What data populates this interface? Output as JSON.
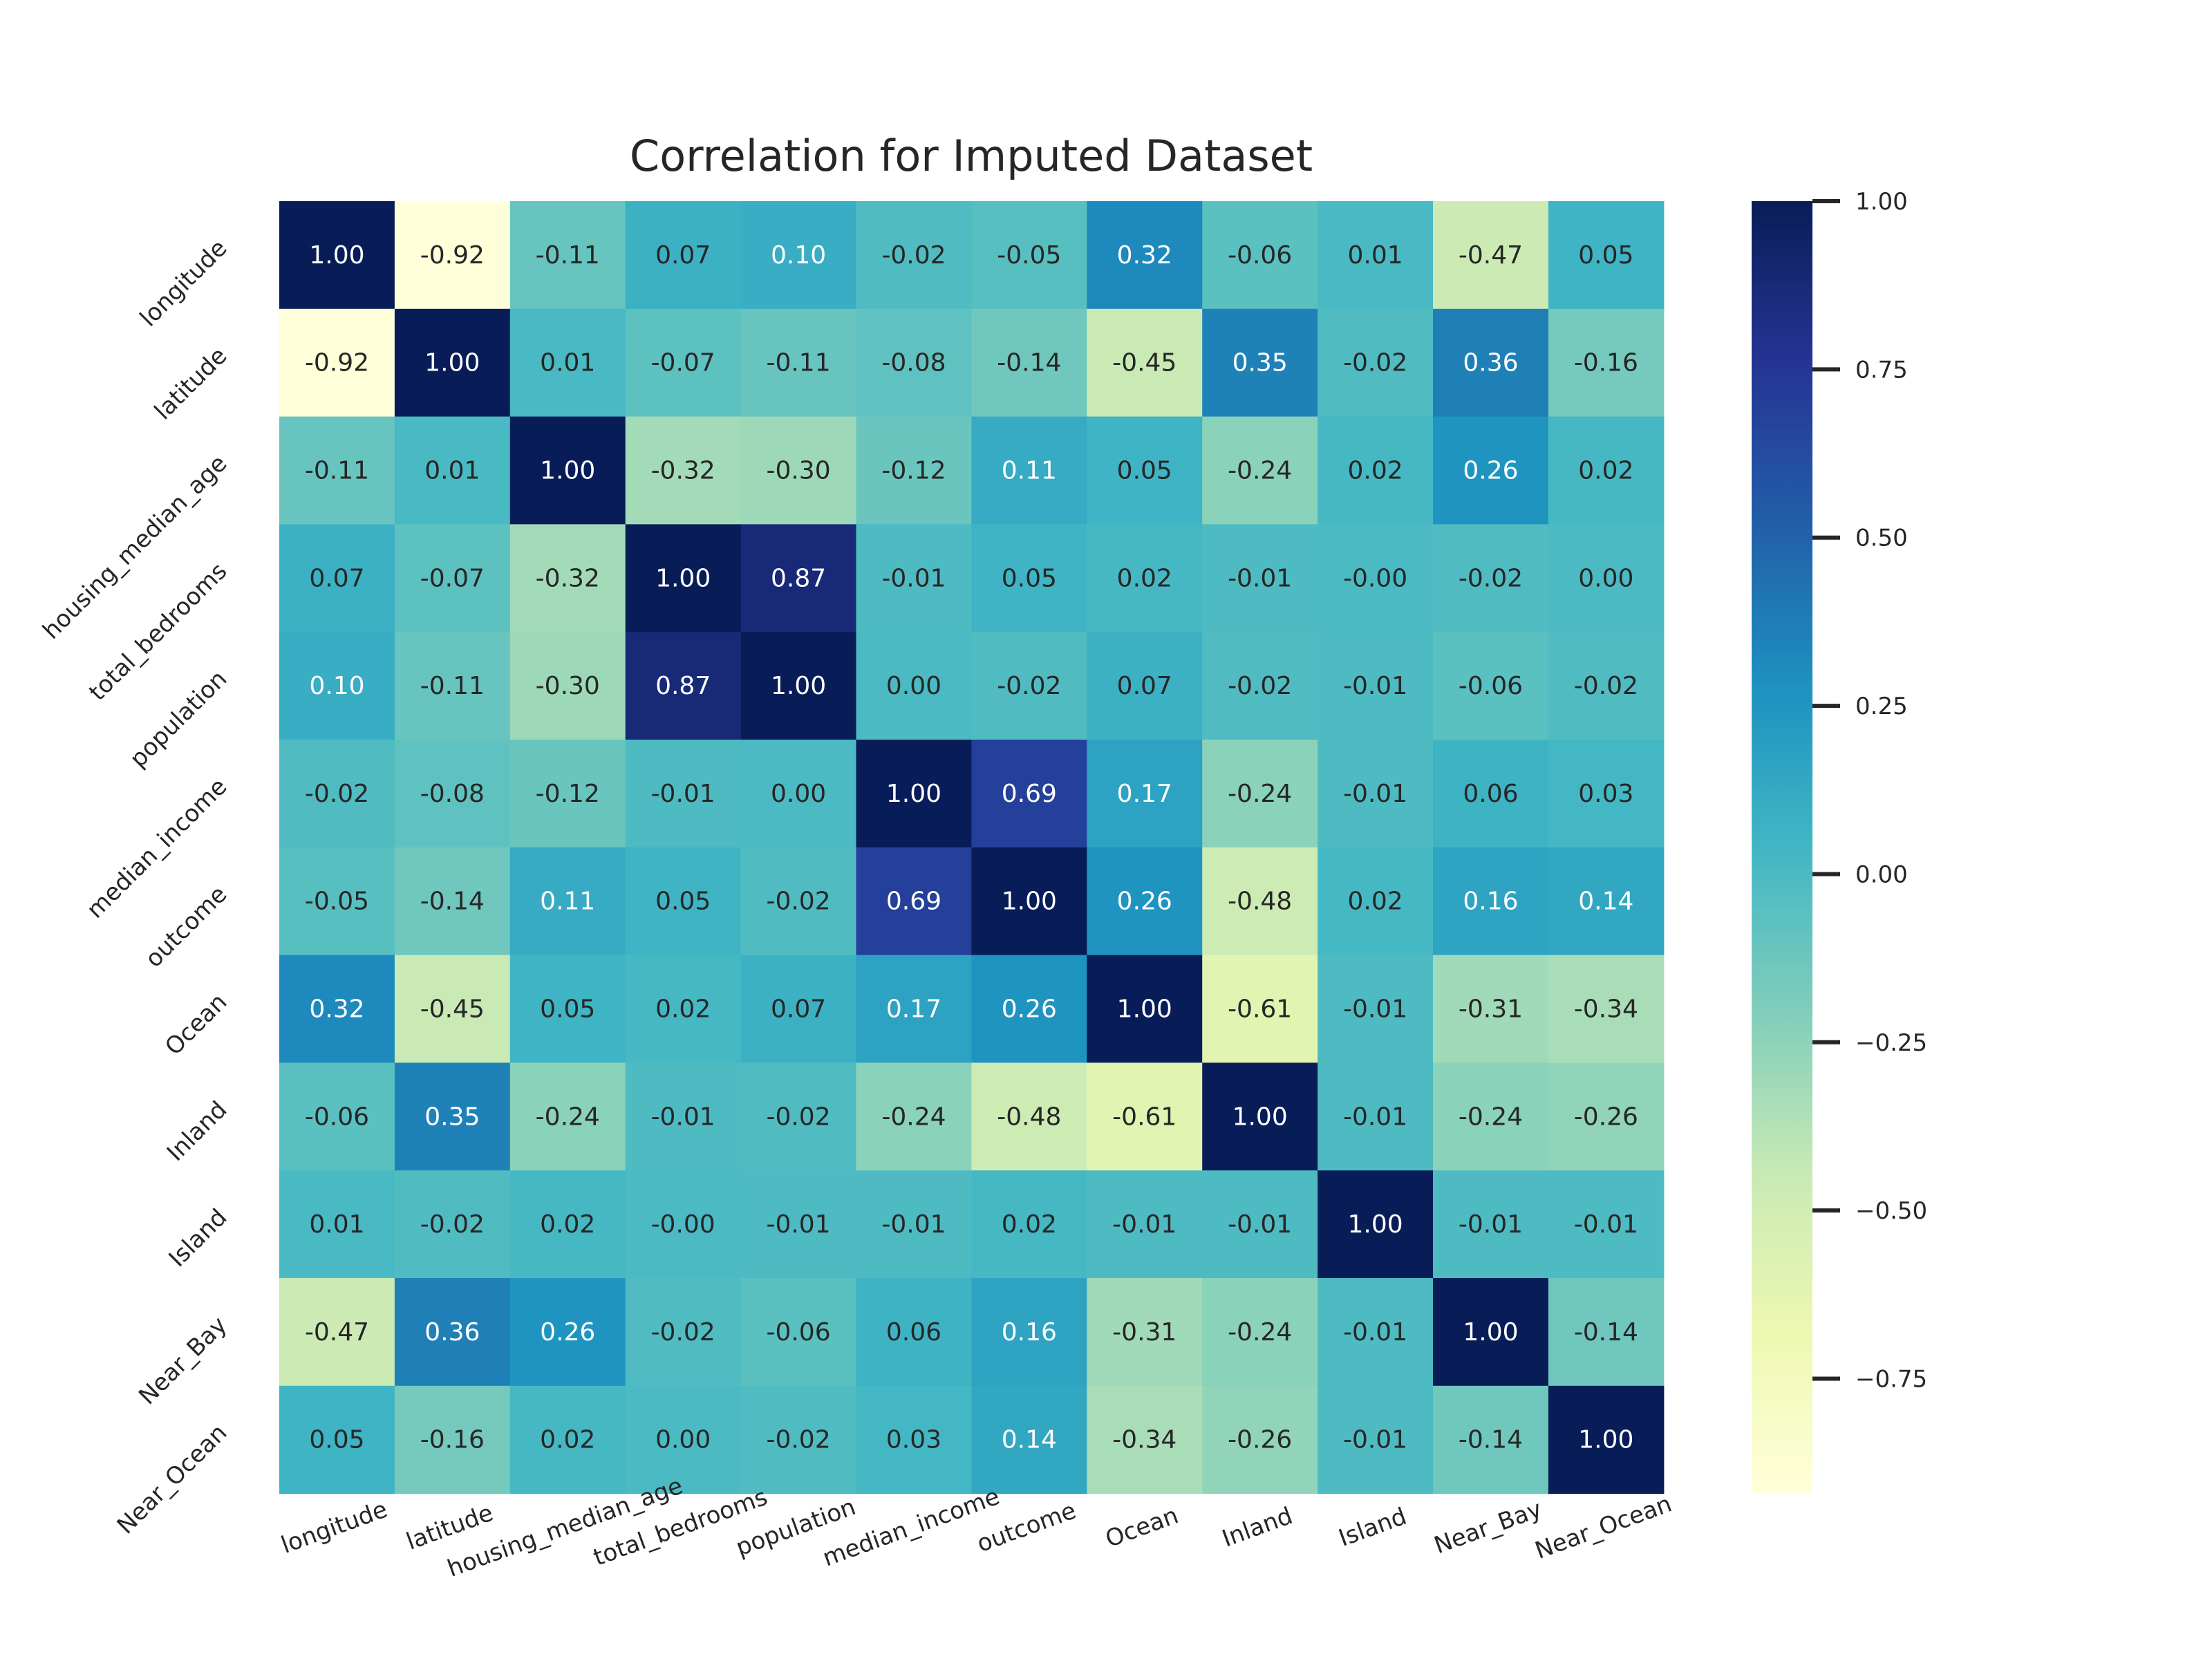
{
  "chart_data": {
    "type": "heatmap",
    "title": "Correlation for Imputed Dataset",
    "xlabel": "",
    "ylabel": "",
    "variables": [
      "longitude",
      "latitude",
      "housing_median_age",
      "total_bedrooms",
      "population",
      "median_income",
      "outcome",
      "Ocean",
      "Inland",
      "Island",
      "Near_Bay",
      "Near_Ocean"
    ],
    "values": [
      [
        1.0,
        -0.92,
        -0.11,
        0.07,
        0.1,
        -0.02,
        -0.05,
        0.32,
        -0.06,
        0.01,
        -0.47,
        0.05
      ],
      [
        -0.92,
        1.0,
        0.01,
        -0.07,
        -0.11,
        -0.08,
        -0.14,
        -0.45,
        0.35,
        -0.02,
        0.36,
        -0.16
      ],
      [
        -0.11,
        0.01,
        1.0,
        -0.32,
        -0.3,
        -0.12,
        0.11,
        0.05,
        -0.24,
        0.02,
        0.26,
        0.02
      ],
      [
        0.07,
        -0.07,
        -0.32,
        1.0,
        0.87,
        -0.01,
        0.05,
        0.02,
        -0.01,
        -0.0,
        -0.02,
        0.0
      ],
      [
        0.1,
        -0.11,
        -0.3,
        0.87,
        1.0,
        0.0,
        -0.02,
        0.07,
        -0.02,
        -0.01,
        -0.06,
        -0.02
      ],
      [
        -0.02,
        -0.08,
        -0.12,
        -0.01,
        0.0,
        1.0,
        0.69,
        0.17,
        -0.24,
        -0.01,
        0.06,
        0.03
      ],
      [
        -0.05,
        -0.14,
        0.11,
        0.05,
        -0.02,
        0.69,
        1.0,
        0.26,
        -0.48,
        0.02,
        0.16,
        0.14
      ],
      [
        0.32,
        -0.45,
        0.05,
        0.02,
        0.07,
        0.17,
        0.26,
        1.0,
        -0.61,
        -0.01,
        -0.31,
        -0.34
      ],
      [
        -0.06,
        0.35,
        -0.24,
        -0.01,
        -0.02,
        -0.24,
        -0.48,
        -0.61,
        1.0,
        -0.01,
        -0.24,
        -0.26
      ],
      [
        0.01,
        -0.02,
        0.02,
        -0.0,
        -0.01,
        -0.01,
        0.02,
        -0.01,
        -0.01,
        1.0,
        -0.01,
        -0.01
      ],
      [
        -0.47,
        0.36,
        0.26,
        -0.02,
        -0.06,
        0.06,
        0.16,
        -0.31,
        -0.24,
        -0.01,
        1.0,
        -0.14
      ],
      [
        0.05,
        -0.16,
        0.02,
        0.0,
        -0.02,
        0.03,
        0.14,
        -0.34,
        -0.26,
        -0.01,
        -0.14,
        1.0
      ]
    ],
    "value_format": "2 decimals",
    "colormap": "YlGnBu",
    "vmin": -0.92,
    "vmax": 1.0,
    "colorbar_ticks": [
      1.0,
      0.75,
      0.5,
      0.25,
      0.0,
      -0.25,
      -0.5,
      -0.75
    ],
    "colorbar_tick_labels": [
      "1.00",
      "0.75",
      "0.50",
      "0.25",
      "0.00",
      "−0.25",
      "−0.50",
      "−0.75"
    ],
    "x_tick_rotation_deg": 20,
    "y_tick_rotation_deg": 45,
    "grid": false,
    "legend": "colorbar right"
  }
}
